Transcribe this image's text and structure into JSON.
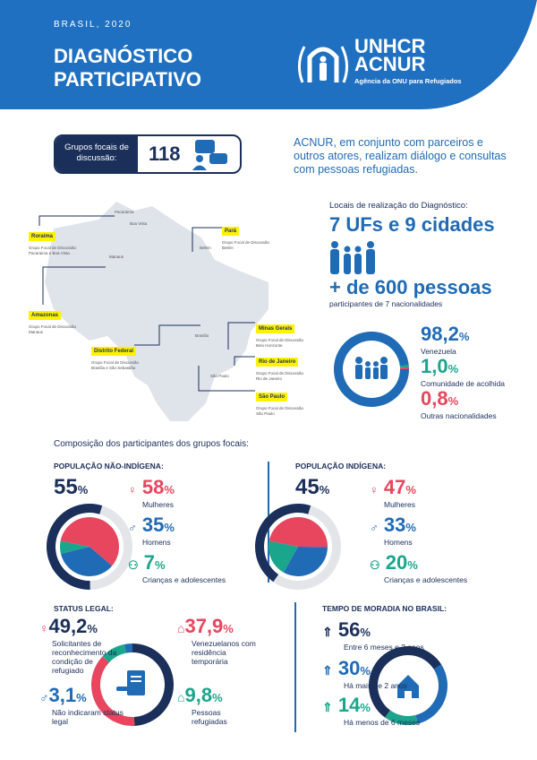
{
  "header": {
    "kicker": "BRASIL, 2020",
    "title": "DIAGNÓSTICO PARTICIPATIVO",
    "logo": {
      "line1": "UNHCR",
      "line2": "ACNUR",
      "tagline": "Agência da ONU para Refugiados"
    }
  },
  "focal_groups": {
    "label": "Grupos focais de discussão:",
    "count": "118",
    "icon": "chat-people-icon"
  },
  "intro": "ACNUR, em conjunto com parceiros e outros atores, realizam diálogo e consultas com pessoas refugiadas.",
  "map": {
    "cities": [
      "Pacaraima",
      "Boa Vista",
      "Manaus",
      "Belém",
      "Brasília",
      "São Paulo"
    ],
    "states": [
      {
        "name": "Roraima",
        "caption": "Grupo Focal de Discussão",
        "places": "Pacaraima e Boa Vista"
      },
      {
        "name": "Pará",
        "caption": "Grupo Focal de Discussão",
        "places": "Belém"
      },
      {
        "name": "Amazonas",
        "caption": "Grupo Focal de Discussão",
        "places": "Manaus"
      },
      {
        "name": "Minas Gerais",
        "caption": "Grupo Focal de Discussão",
        "places": "Belo Horizonte"
      },
      {
        "name": "Distrito Federal",
        "caption": "Grupo Focal de Discussão",
        "places": "Brasília e São Sebastião"
      },
      {
        "name": "Rio de Janeiro",
        "caption": "Grupo Focal de Discussão",
        "places": "Rio de Janeiro"
      },
      {
        "name": "São Paulo",
        "caption": "Grupo Focal de Discussão",
        "places": "São Paulo"
      }
    ]
  },
  "locations": {
    "label": "Locais de realização do Diagnóstico:",
    "headline": "7 UFs e 9 cidades",
    "people": "+ de 600 pessoas",
    "people_sub": "participantes de 7 nacionalidades"
  },
  "colors": {
    "navy": "#1b2f5b",
    "blue": "#1f6bb5",
    "red": "#e8455e",
    "green": "#1aa68c",
    "grey": "#e3e5e8",
    "highlight": "#fff200"
  },
  "composition_title": "Composição dos participantes dos grupos focais:",
  "chart_data": [
    {
      "type": "pie",
      "id": "nationalities",
      "slices": [
        {
          "label": "Venezuela",
          "value": 98.2,
          "display": "98,2",
          "color": "#1f6bb5"
        },
        {
          "label": "Comunidade de acolhida",
          "value": 1.0,
          "display": "1,0",
          "color": "#1aa68c"
        },
        {
          "label": "Outras nacionalidades",
          "value": 0.8,
          "display": "0,8",
          "color": "#e8455e"
        }
      ]
    },
    {
      "type": "pie",
      "id": "non_indigenous",
      "title": "POPULAÇÃO NÃO-INDÍGENA:",
      "share": 55,
      "share_display": "55",
      "slices": [
        {
          "label": "Mulheres",
          "value": 58,
          "display": "58",
          "color": "#e8455e"
        },
        {
          "label": "Homens",
          "value": 35,
          "display": "35",
          "color": "#1f6bb5"
        },
        {
          "label": "Crianças e adolescentes",
          "value": 7,
          "display": "7",
          "color": "#1aa68c"
        }
      ]
    },
    {
      "type": "pie",
      "id": "indigenous",
      "title": "POPULAÇÃO INDÍGENA:",
      "share": 45,
      "share_display": "45",
      "slices": [
        {
          "label": "Mulheres",
          "value": 47,
          "display": "47",
          "color": "#e8455e"
        },
        {
          "label": "Homens",
          "value": 33,
          "display": "33",
          "color": "#1f6bb5"
        },
        {
          "label": "Crianças e adolescentes",
          "value": 20,
          "display": "20",
          "color": "#1aa68c"
        }
      ]
    },
    {
      "type": "pie",
      "id": "legal_status",
      "title": "STATUS LEGAL:",
      "slices": [
        {
          "label": "Solicitantes de reconhecimento da condição de refugiado",
          "value": 49.2,
          "display": "49,2",
          "color": "#1b2f5b"
        },
        {
          "label": "Venezuelanos com residência temporária",
          "value": 37.9,
          "display": "37,9",
          "color": "#e8455e"
        },
        {
          "label": "Pessoas refugiadas",
          "value": 9.8,
          "display": "9,8",
          "color": "#1aa68c"
        },
        {
          "label": "Não indicaram status legal",
          "value": 3.1,
          "display": "3,1",
          "color": "#1f6bb5"
        }
      ]
    },
    {
      "type": "pie",
      "id": "residence_time",
      "title": "TEMPO DE MORADIA NO BRASIL:",
      "slices": [
        {
          "label": "Entre 6 meses e 2 anos",
          "value": 56,
          "display": "56",
          "color": "#1b2f5b"
        },
        {
          "label": "Há mais de 2 anos",
          "value": 30,
          "display": "30",
          "color": "#1f6bb5"
        },
        {
          "label": "Há menos de 6 meses",
          "value": 14,
          "display": "14",
          "color": "#1aa68c"
        }
      ]
    }
  ],
  "percent_sign": "%"
}
